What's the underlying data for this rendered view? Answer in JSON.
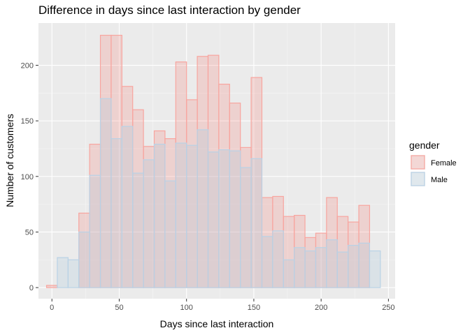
{
  "chart_data": {
    "type": "histogram",
    "title": "Difference in days since last interaction by gender",
    "xlabel": "Days since last interaction",
    "ylabel": "Number of customers",
    "bin_width": 8,
    "bins_start": -4,
    "xlim": [
      -10,
      255
    ],
    "ylim": [
      -10,
      238
    ],
    "x_ticks": [
      0,
      50,
      100,
      150,
      200,
      250
    ],
    "y_ticks": [
      0,
      50,
      100,
      150,
      200
    ],
    "grid": true,
    "legend": {
      "title": "gender",
      "position": "right"
    },
    "series": [
      {
        "name": "Female",
        "fill": "#f8766d",
        "values": [
          2,
          0,
          0,
          67,
          129,
          227,
          227,
          181,
          160,
          127,
          141,
          134,
          203,
          169,
          208,
          209,
          183,
          166,
          126,
          189,
          81,
          82,
          64,
          65,
          45,
          49,
          81,
          64,
          59,
          74,
          0
        ]
      },
      {
        "name": "Male",
        "fill": "#9fc3db",
        "values": [
          0,
          27,
          25,
          50,
          101,
          170,
          134,
          145,
          103,
          115,
          129,
          96,
          130,
          128,
          142,
          122,
          124,
          123,
          108,
          116,
          46,
          51,
          25,
          36,
          33,
          36,
          43,
          32,
          38,
          40,
          33
        ]
      }
    ]
  }
}
